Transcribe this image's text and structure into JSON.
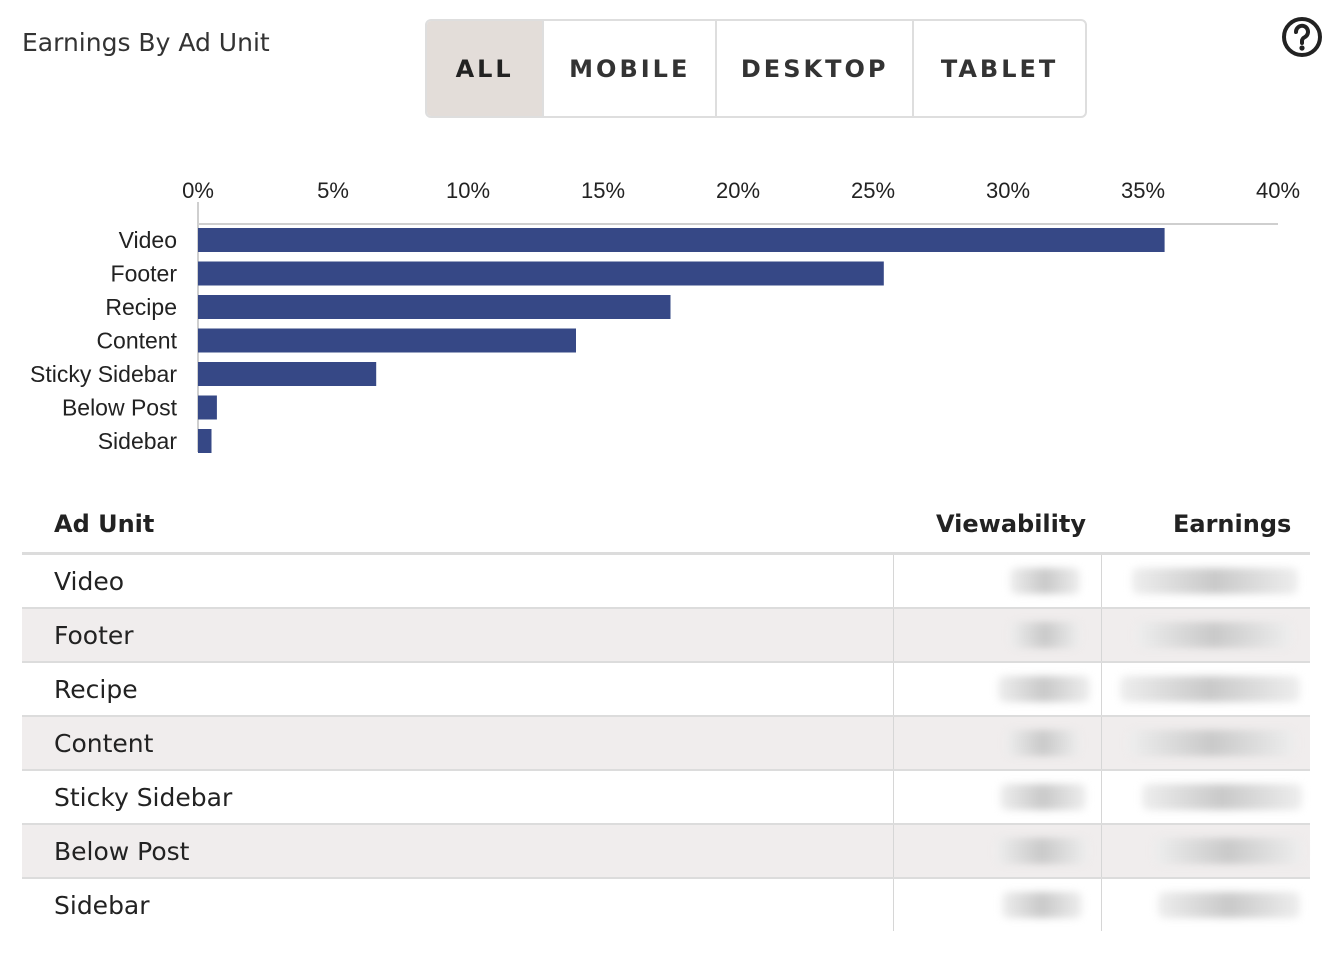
{
  "header": {
    "title": "Earnings By Ad Unit",
    "filters": [
      "ALL",
      "MOBILE",
      "DESKTOP",
      "TABLET"
    ],
    "active_filter": "ALL",
    "help_icon": "question-circle-icon"
  },
  "chart_data": {
    "type": "bar",
    "orientation": "horizontal",
    "categories": [
      "Video",
      "Footer",
      "Recipe",
      "Content",
      "Sticky Sidebar",
      "Below Post",
      "Sidebar"
    ],
    "values": [
      35.8,
      25.4,
      17.5,
      14.0,
      6.6,
      0.7,
      0.5
    ],
    "xlim": [
      0,
      40
    ],
    "xticks": [
      "0%",
      "5%",
      "10%",
      "15%",
      "20%",
      "25%",
      "30%",
      "35%",
      "40%"
    ],
    "x_axis_position": "top",
    "bar_color": "#364886",
    "grid": false
  },
  "table": {
    "headers": {
      "ad_unit": "Ad Unit",
      "viewability": "Viewability",
      "earnings": "Earnings"
    },
    "rows": [
      {
        "ad_unit": "Video"
      },
      {
        "ad_unit": "Footer"
      },
      {
        "ad_unit": "Recipe"
      },
      {
        "ad_unit": "Content"
      },
      {
        "ad_unit": "Sticky Sidebar"
      },
      {
        "ad_unit": "Below Post"
      },
      {
        "ad_unit": "Sidebar"
      }
    ]
  }
}
